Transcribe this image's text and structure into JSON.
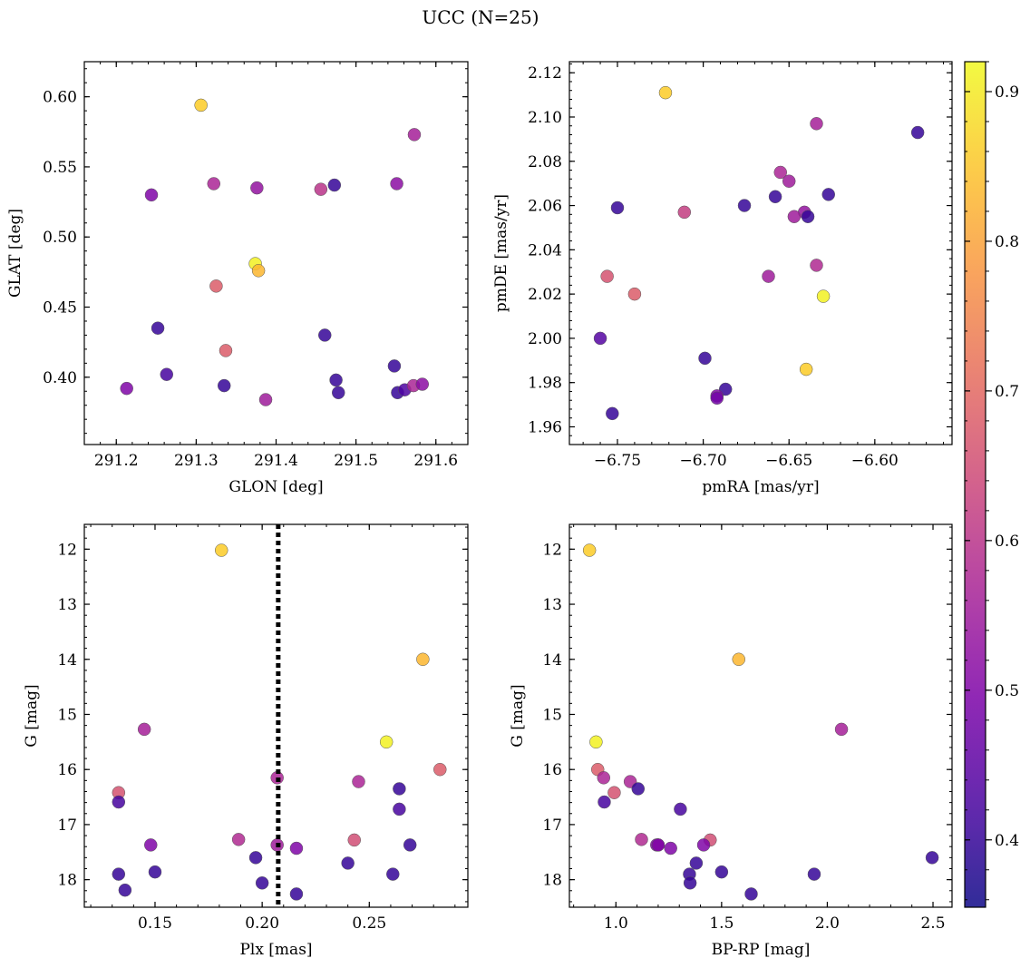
{
  "figure": {
    "suptitle": "UCC (N=25)"
  },
  "colorbar": {
    "vmin": 0.355,
    "vmax": 0.92,
    "ticks": [
      0.4,
      0.5,
      0.6,
      0.7,
      0.8,
      0.9
    ],
    "tick_labels": [
      "0.4",
      "0.5",
      "0.6",
      "0.7",
      "0.8",
      "0.9"
    ],
    "colormap": "plasma"
  },
  "chart_data": [
    {
      "type": "scatter",
      "panel": "top-left",
      "xlabel": "GLON [deg]",
      "ylabel": "GLAT [deg]",
      "xlim": [
        291.16,
        291.64
      ],
      "ylim": [
        0.352,
        0.625
      ],
      "y_inverted": false,
      "xticks": [
        291.2,
        291.3,
        291.4,
        291.5,
        291.6
      ],
      "xtick_labels": [
        "291.2",
        "291.3",
        "291.4",
        "291.5",
        "291.6"
      ],
      "yticks": [
        0.4,
        0.45,
        0.5,
        0.55,
        0.6
      ],
      "ytick_labels": [
        "0.40",
        "0.45",
        "0.50",
        "0.55",
        "0.60"
      ],
      "points": [
        {
          "x": 291.306,
          "y": 0.594,
          "c": 0.86
        },
        {
          "x": 291.573,
          "y": 0.573,
          "c": 0.56
        },
        {
          "x": 291.244,
          "y": 0.53,
          "c": 0.5
        },
        {
          "x": 291.322,
          "y": 0.538,
          "c": 0.57
        },
        {
          "x": 291.376,
          "y": 0.535,
          "c": 0.53
        },
        {
          "x": 291.456,
          "y": 0.534,
          "c": 0.6
        },
        {
          "x": 291.473,
          "y": 0.537,
          "c": 0.4
        },
        {
          "x": 291.551,
          "y": 0.538,
          "c": 0.52
        },
        {
          "x": 291.374,
          "y": 0.481,
          "c": 0.91
        },
        {
          "x": 291.378,
          "y": 0.476,
          "c": 0.83
        },
        {
          "x": 291.325,
          "y": 0.465,
          "c": 0.68
        },
        {
          "x": 291.252,
          "y": 0.435,
          "c": 0.4
        },
        {
          "x": 291.461,
          "y": 0.43,
          "c": 0.4
        },
        {
          "x": 291.337,
          "y": 0.419,
          "c": 0.68
        },
        {
          "x": 291.548,
          "y": 0.408,
          "c": 0.4
        },
        {
          "x": 291.263,
          "y": 0.402,
          "c": 0.42
        },
        {
          "x": 291.475,
          "y": 0.398,
          "c": 0.4
        },
        {
          "x": 291.213,
          "y": 0.392,
          "c": 0.5
        },
        {
          "x": 291.335,
          "y": 0.394,
          "c": 0.4
        },
        {
          "x": 291.478,
          "y": 0.389,
          "c": 0.4
        },
        {
          "x": 291.552,
          "y": 0.389,
          "c": 0.4
        },
        {
          "x": 291.561,
          "y": 0.391,
          "c": 0.43
        },
        {
          "x": 291.572,
          "y": 0.394,
          "c": 0.57
        },
        {
          "x": 291.583,
          "y": 0.395,
          "c": 0.52
        },
        {
          "x": 291.387,
          "y": 0.384,
          "c": 0.55
        }
      ]
    },
    {
      "type": "scatter",
      "panel": "top-right",
      "xlabel": "pmRA [mas/yr]",
      "ylabel": "pmDE [mas/yr]",
      "xlim": [
        -6.778,
        -6.555
      ],
      "ylim": [
        1.952,
        2.125
      ],
      "y_inverted": false,
      "xticks": [
        -6.75,
        -6.7,
        -6.65,
        -6.6
      ],
      "xtick_labels": [
        "−6.75",
        "−6.70",
        "−6.65",
        "−6.60"
      ],
      "yticks": [
        1.96,
        1.98,
        2.0,
        2.02,
        2.04,
        2.06,
        2.08,
        2.1,
        2.12
      ],
      "ytick_labels": [
        "1.96",
        "1.98",
        "2.00",
        "2.02",
        "2.04",
        "2.06",
        "2.08",
        "2.10",
        "2.12"
      ],
      "points": [
        {
          "x": -6.722,
          "y": 2.111,
          "c": 0.86
        },
        {
          "x": -6.634,
          "y": 2.097,
          "c": 0.56
        },
        {
          "x": -6.575,
          "y": 2.093,
          "c": 0.4
        },
        {
          "x": -6.655,
          "y": 2.075,
          "c": 0.57
        },
        {
          "x": -6.65,
          "y": 2.071,
          "c": 0.55
        },
        {
          "x": -6.627,
          "y": 2.065,
          "c": 0.4
        },
        {
          "x": -6.658,
          "y": 2.064,
          "c": 0.4
        },
        {
          "x": -6.676,
          "y": 2.06,
          "c": 0.4
        },
        {
          "x": -6.75,
          "y": 2.059,
          "c": 0.4
        },
        {
          "x": -6.641,
          "y": 2.057,
          "c": 0.53
        },
        {
          "x": -6.711,
          "y": 2.057,
          "c": 0.62
        },
        {
          "x": -6.647,
          "y": 2.055,
          "c": 0.55
        },
        {
          "x": -6.639,
          "y": 2.055,
          "c": 0.4
        },
        {
          "x": -6.634,
          "y": 2.033,
          "c": 0.58
        },
        {
          "x": -6.756,
          "y": 2.028,
          "c": 0.66
        },
        {
          "x": -6.662,
          "y": 2.028,
          "c": 0.55
        },
        {
          "x": -6.74,
          "y": 2.02,
          "c": 0.68
        },
        {
          "x": -6.63,
          "y": 2.019,
          "c": 0.91
        },
        {
          "x": -6.76,
          "y": 2.0,
          "c": 0.44
        },
        {
          "x": -6.699,
          "y": 1.991,
          "c": 0.4
        },
        {
          "x": -6.64,
          "y": 1.986,
          "c": 0.86
        },
        {
          "x": -6.687,
          "y": 1.977,
          "c": 0.4
        },
        {
          "x": -6.692,
          "y": 1.974,
          "c": 0.5
        },
        {
          "x": -6.692,
          "y": 1.973,
          "c": 0.48
        },
        {
          "x": -6.753,
          "y": 1.966,
          "c": 0.4
        }
      ]
    },
    {
      "type": "scatter",
      "panel": "bottom-left",
      "xlabel": "Plx [mas]",
      "ylabel": "G [mag]",
      "xlim": [
        0.117,
        0.296
      ],
      "ylim": [
        11.55,
        18.5
      ],
      "y_inverted": true,
      "xticks": [
        0.15,
        0.2,
        0.25
      ],
      "xtick_labels": [
        "0.15",
        "0.20",
        "0.25"
      ],
      "yticks": [
        12,
        13,
        14,
        15,
        16,
        17,
        18
      ],
      "ytick_labels": [
        "12",
        "13",
        "14",
        "15",
        "16",
        "17",
        "18"
      ],
      "vline": {
        "x": 0.2075,
        "style": "dotted"
      },
      "points": [
        {
          "x": 0.181,
          "y": 12.02,
          "c": 0.86
        },
        {
          "x": 0.275,
          "y": 14.0,
          "c": 0.83
        },
        {
          "x": 0.145,
          "y": 15.27,
          "c": 0.56
        },
        {
          "x": 0.258,
          "y": 15.5,
          "c": 0.91
        },
        {
          "x": 0.283,
          "y": 16.0,
          "c": 0.68
        },
        {
          "x": 0.207,
          "y": 16.15,
          "c": 0.57
        },
        {
          "x": 0.245,
          "y": 16.22,
          "c": 0.57
        },
        {
          "x": 0.264,
          "y": 16.35,
          "c": 0.4
        },
        {
          "x": 0.133,
          "y": 16.42,
          "c": 0.66
        },
        {
          "x": 0.133,
          "y": 16.59,
          "c": 0.42
        },
        {
          "x": 0.264,
          "y": 16.72,
          "c": 0.42
        },
        {
          "x": 0.189,
          "y": 17.27,
          "c": 0.58
        },
        {
          "x": 0.243,
          "y": 17.28,
          "c": 0.65
        },
        {
          "x": 0.148,
          "y": 17.37,
          "c": 0.5
        },
        {
          "x": 0.207,
          "y": 17.37,
          "c": 0.55
        },
        {
          "x": 0.269,
          "y": 17.37,
          "c": 0.4
        },
        {
          "x": 0.216,
          "y": 17.43,
          "c": 0.5
        },
        {
          "x": 0.197,
          "y": 17.6,
          "c": 0.4
        },
        {
          "x": 0.24,
          "y": 17.7,
          "c": 0.4
        },
        {
          "x": 0.15,
          "y": 17.86,
          "c": 0.4
        },
        {
          "x": 0.133,
          "y": 17.9,
          "c": 0.4
        },
        {
          "x": 0.261,
          "y": 17.9,
          "c": 0.4
        },
        {
          "x": 0.2,
          "y": 18.06,
          "c": 0.4
        },
        {
          "x": 0.136,
          "y": 18.19,
          "c": 0.4
        },
        {
          "x": 0.216,
          "y": 18.26,
          "c": 0.4
        }
      ]
    },
    {
      "type": "scatter",
      "panel": "bottom-right",
      "xlabel": "BP-RP [mag]",
      "ylabel": "G [mag]",
      "xlim": [
        0.78,
        2.59
      ],
      "ylim": [
        11.55,
        18.5
      ],
      "y_inverted": true,
      "xticks": [
        1.0,
        1.5,
        2.0,
        2.5
      ],
      "xtick_labels": [
        "1.0",
        "1.5",
        "2.0",
        "2.5"
      ],
      "yticks": [
        12,
        13,
        14,
        15,
        16,
        17,
        18
      ],
      "ytick_labels": [
        "12",
        "13",
        "14",
        "15",
        "16",
        "17",
        "18"
      ],
      "points": [
        {
          "x": 0.875,
          "y": 12.02,
          "c": 0.86
        },
        {
          "x": 1.581,
          "y": 14.0,
          "c": 0.83
        },
        {
          "x": 2.067,
          "y": 15.27,
          "c": 0.56
        },
        {
          "x": 0.906,
          "y": 15.5,
          "c": 0.91
        },
        {
          "x": 0.914,
          "y": 16.0,
          "c": 0.68
        },
        {
          "x": 0.942,
          "y": 16.15,
          "c": 0.57
        },
        {
          "x": 1.068,
          "y": 16.22,
          "c": 0.57
        },
        {
          "x": 1.105,
          "y": 16.35,
          "c": 0.4
        },
        {
          "x": 0.992,
          "y": 16.42,
          "c": 0.66
        },
        {
          "x": 0.945,
          "y": 16.59,
          "c": 0.42
        },
        {
          "x": 1.305,
          "y": 16.72,
          "c": 0.42
        },
        {
          "x": 1.121,
          "y": 17.27,
          "c": 0.58
        },
        {
          "x": 1.446,
          "y": 17.28,
          "c": 0.65
        },
        {
          "x": 1.193,
          "y": 17.37,
          "c": 0.5
        },
        {
          "x": 1.2,
          "y": 17.37,
          "c": 0.55
        },
        {
          "x": 1.415,
          "y": 17.37,
          "c": 0.5
        },
        {
          "x": 1.259,
          "y": 17.43,
          "c": 0.5
        },
        {
          "x": 2.496,
          "y": 17.6,
          "c": 0.4
        },
        {
          "x": 1.38,
          "y": 17.7,
          "c": 0.4
        },
        {
          "x": 1.5,
          "y": 17.86,
          "c": 0.4
        },
        {
          "x": 1.348,
          "y": 17.9,
          "c": 0.4
        },
        {
          "x": 1.938,
          "y": 17.9,
          "c": 0.4
        },
        {
          "x": 1.351,
          "y": 18.06,
          "c": 0.4
        },
        {
          "x": 1.64,
          "y": 18.26,
          "c": 0.4
        },
        {
          "x": 1.2,
          "y": 17.37,
          "c": 0.5
        }
      ]
    }
  ]
}
